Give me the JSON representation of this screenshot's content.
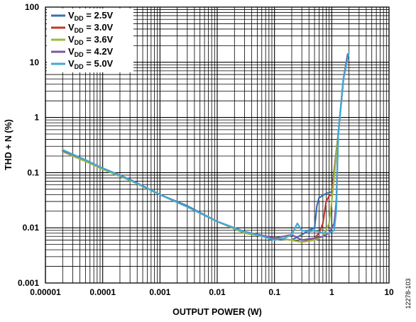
{
  "chart_data": {
    "type": "line",
    "title": "",
    "xlabel": "OUTPUT POWER (W)",
    "ylabel": "THD + N (%)",
    "x_scale": "log",
    "y_scale": "log",
    "xlim": [
      1e-05,
      10
    ],
    "ylim": [
      0.001,
      100
    ],
    "x_ticks": [
      "0.00001",
      "0.0001",
      "0.001",
      "0.01",
      "0.1",
      "1",
      "10"
    ],
    "y_ticks": [
      "0.001",
      "0.01",
      "0.1",
      "1",
      "10",
      "100"
    ],
    "grid": true,
    "legend_position": "top-left",
    "figure_id": "12278-103",
    "series": [
      {
        "vdd_value": "2.5V",
        "color": "#3a6fb0",
        "x": [
          2e-05,
          5e-05,
          0.0001,
          0.0003,
          0.001,
          0.003,
          0.01,
          0.03,
          0.1,
          0.2,
          0.3,
          0.4,
          0.5,
          0.55,
          0.6,
          0.8,
          1.0,
          1.3,
          1.6,
          1.9
        ],
        "y": [
          0.25,
          0.17,
          0.12,
          0.075,
          0.04,
          0.025,
          0.013,
          0.008,
          0.0065,
          0.006,
          0.0075,
          0.009,
          0.01,
          0.025,
          0.035,
          0.042,
          0.045,
          0.5,
          5,
          14
        ]
      },
      {
        "vdd_value": "3.0V",
        "color": "#c0392b",
        "x": [
          2e-05,
          5e-05,
          0.0001,
          0.0003,
          0.001,
          0.003,
          0.01,
          0.03,
          0.1,
          0.2,
          0.3,
          0.4,
          0.5,
          0.6,
          0.7,
          0.8,
          0.9,
          1.0,
          1.3,
          1.6,
          1.9
        ],
        "y": [
          0.24,
          0.16,
          0.12,
          0.074,
          0.04,
          0.024,
          0.013,
          0.0085,
          0.0065,
          0.006,
          0.0055,
          0.006,
          0.0065,
          0.008,
          0.012,
          0.03,
          0.038,
          0.04,
          0.5,
          5,
          14
        ]
      },
      {
        "vdd_value": "3.6V",
        "color": "#9bbb3c",
        "x": [
          2e-05,
          5e-05,
          0.0001,
          0.0003,
          0.001,
          0.003,
          0.01,
          0.03,
          0.1,
          0.2,
          0.3,
          0.5,
          0.7,
          0.9,
          1.0,
          1.3,
          1.6,
          1.9
        ],
        "y": [
          0.24,
          0.16,
          0.115,
          0.072,
          0.04,
          0.024,
          0.013,
          0.008,
          0.0065,
          0.006,
          0.0055,
          0.006,
          0.007,
          0.012,
          0.03,
          0.5,
          5,
          14
        ]
      },
      {
        "vdd_value": "4.2V",
        "color": "#7a58a4",
        "x": [
          2e-05,
          5e-05,
          0.0001,
          0.0003,
          0.001,
          0.003,
          0.01,
          0.03,
          0.1,
          0.2,
          0.3,
          0.5,
          0.7,
          0.9,
          1.1,
          1.2,
          1.3,
          1.6,
          1.9
        ],
        "y": [
          0.25,
          0.17,
          0.12,
          0.075,
          0.04,
          0.024,
          0.013,
          0.0085,
          0.0065,
          0.0075,
          0.006,
          0.0065,
          0.007,
          0.008,
          0.012,
          0.03,
          0.5,
          5,
          14
        ]
      },
      {
        "vdd_value": "5.0V",
        "color": "#41a9d6",
        "x": [
          2e-05,
          5e-05,
          0.0001,
          0.0003,
          0.001,
          0.003,
          0.01,
          0.03,
          0.05,
          0.1,
          0.15,
          0.2,
          0.25,
          0.3,
          0.4,
          0.5,
          0.7,
          0.9,
          1.1,
          1.2,
          1.3,
          1.6,
          2.0
        ],
        "y": [
          0.26,
          0.17,
          0.12,
          0.074,
          0.04,
          0.024,
          0.013,
          0.0085,
          0.0075,
          0.006,
          0.0065,
          0.0075,
          0.012,
          0.009,
          0.0085,
          0.009,
          0.008,
          0.008,
          0.009,
          0.02,
          0.5,
          5,
          15
        ]
      }
    ]
  }
}
